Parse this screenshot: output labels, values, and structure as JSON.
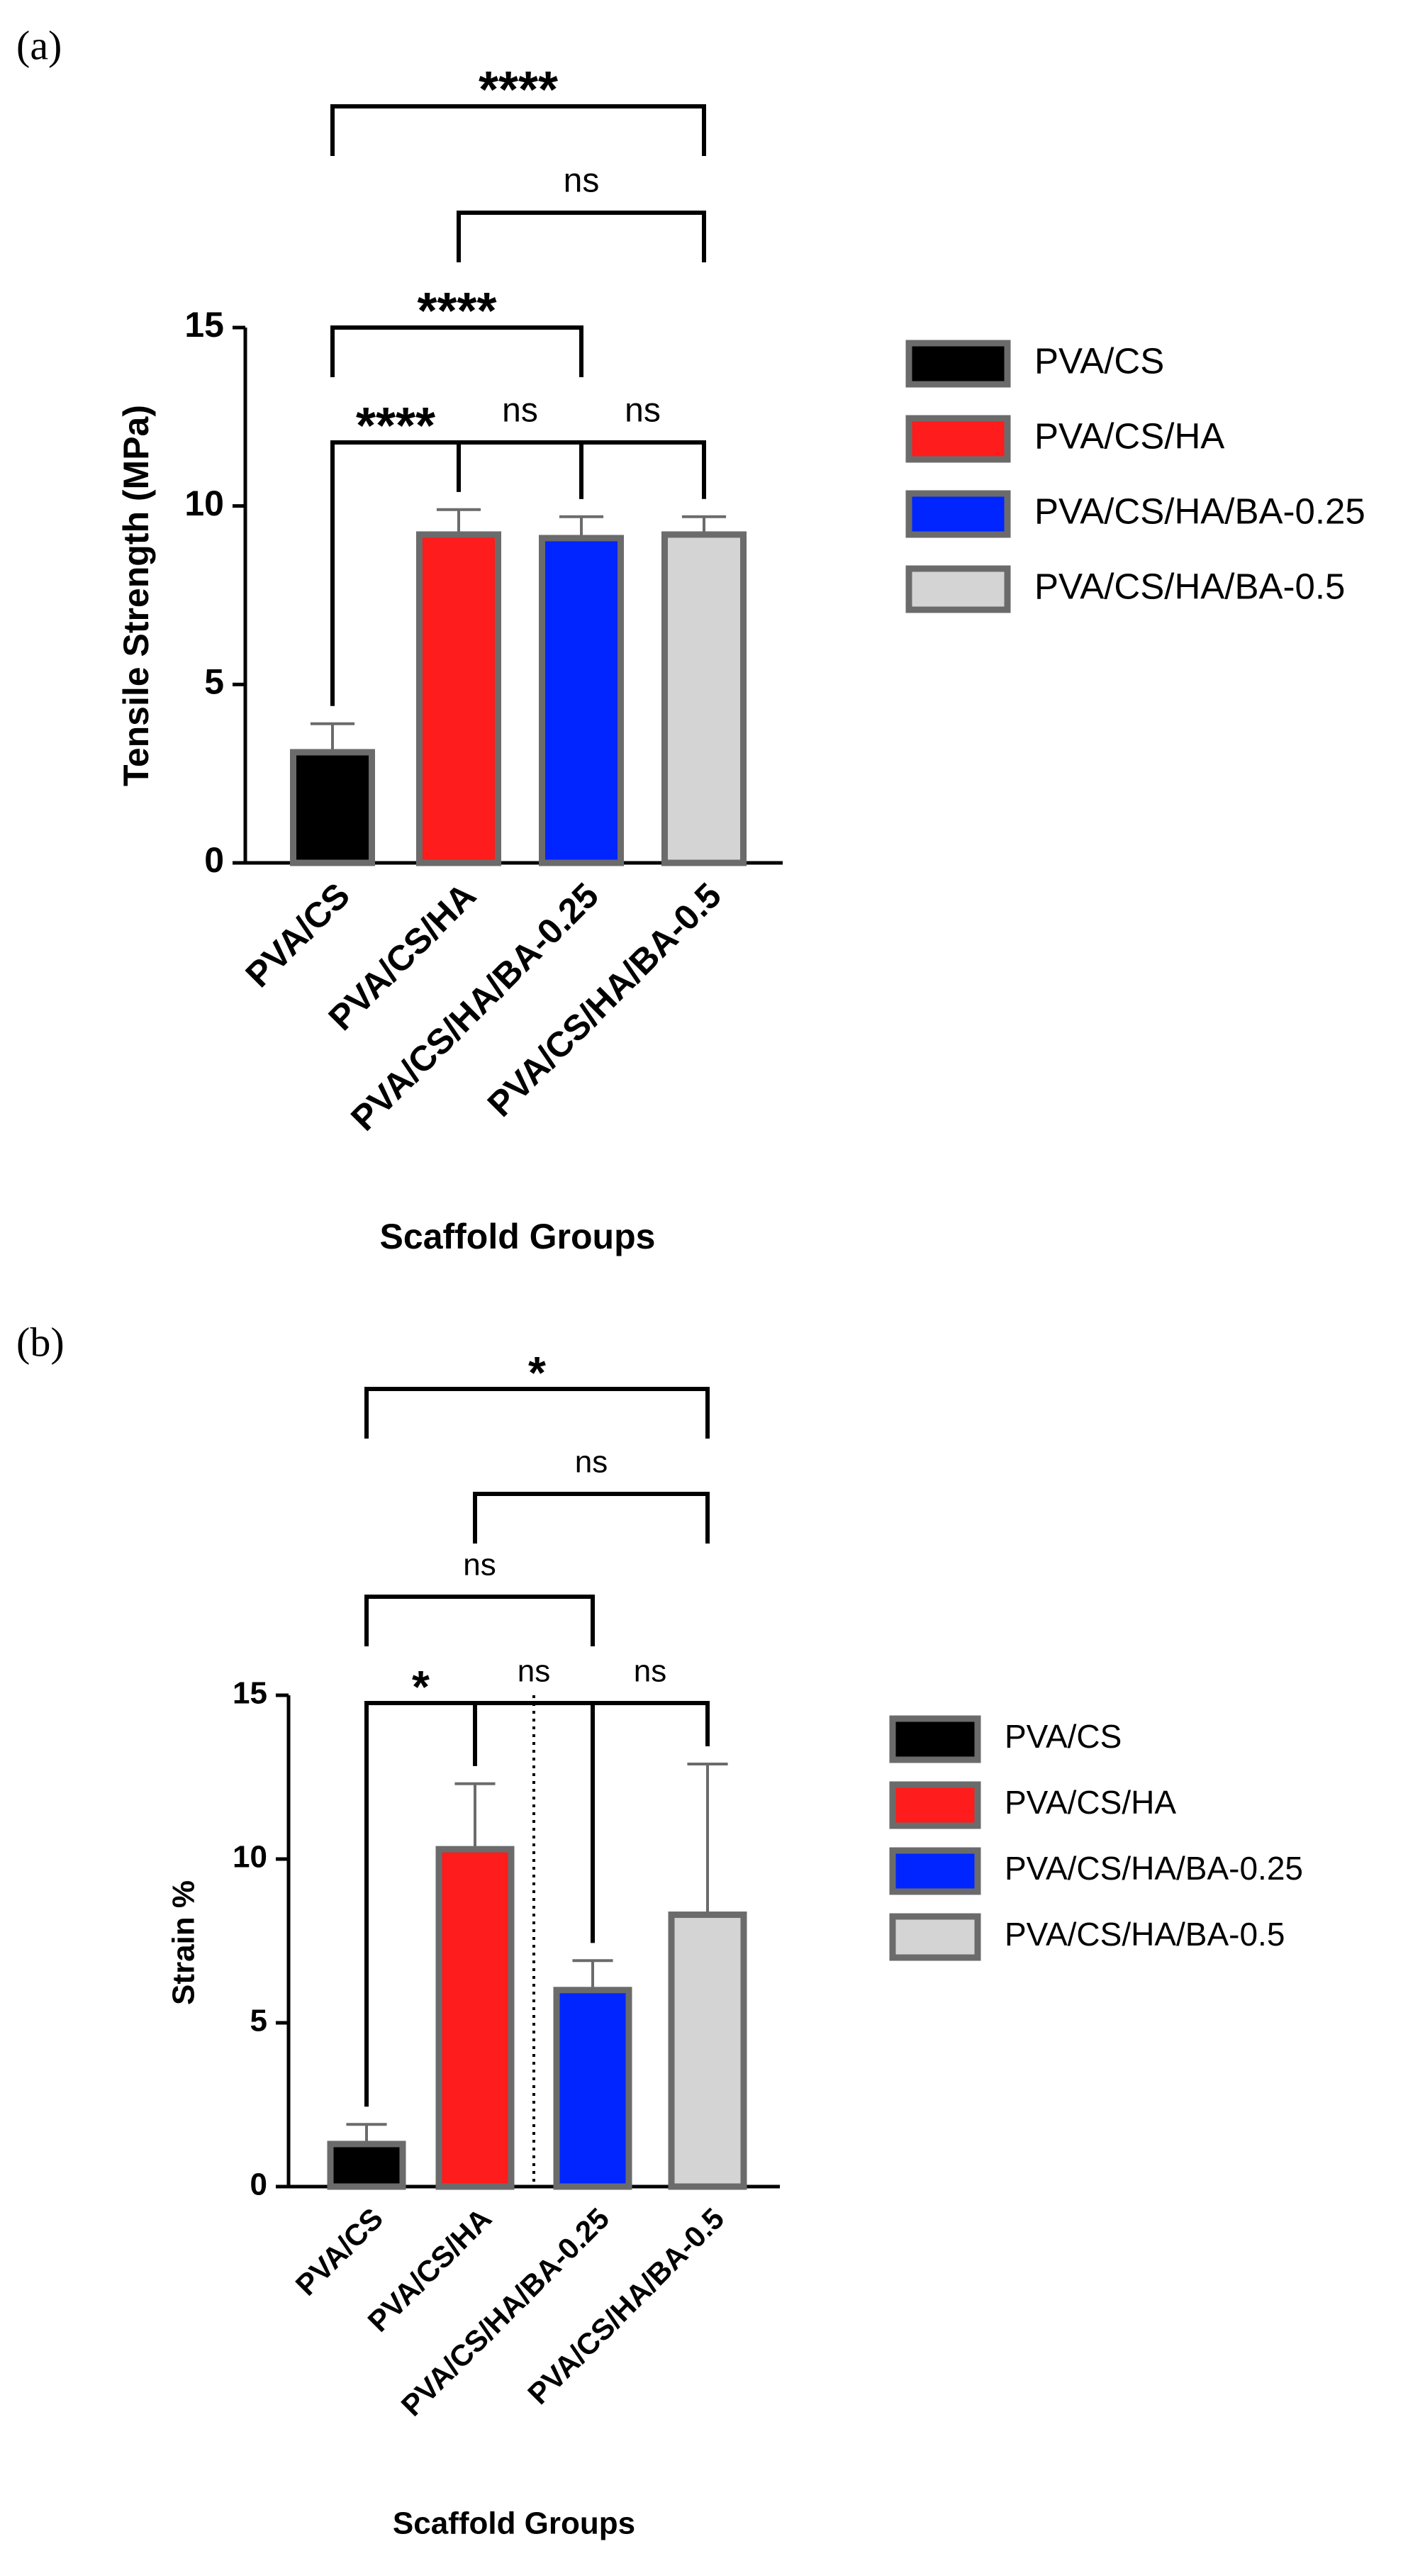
{
  "chart_data": [
    {
      "type": "bar",
      "panel_label": "(a)",
      "y_label": "Tensile Strength (MPa)",
      "x_label": "Scaffold Groups",
      "categories": [
        "PVA/CS",
        "PVA/CS/HA",
        "PVA/CS/HA/BA-0.25",
        "PVA/CS/HA/BA-0.5"
      ],
      "values": [
        3.1,
        9.2,
        9.1,
        9.2
      ],
      "errors": [
        0.8,
        0.7,
        0.6,
        0.5
      ],
      "colors": [
        "#000000",
        "#ff1c1c",
        "#0025ff",
        "#d4d4d4"
      ],
      "edge_color": "#6b6b6b",
      "ylim": [
        0,
        15
      ],
      "yticks": [
        0,
        5,
        10,
        15
      ],
      "legend": "right",
      "comparisons": [
        {
          "pair": [
            0,
            1
          ],
          "label": "****"
        },
        {
          "pair": [
            1,
            2
          ],
          "label": "ns"
        },
        {
          "pair": [
            2,
            3
          ],
          "label": "ns"
        },
        {
          "pair": [
            0,
            2
          ],
          "label": "****"
        },
        {
          "pair": [
            1,
            3
          ],
          "label": "ns"
        },
        {
          "pair": [
            0,
            3
          ],
          "label": "****"
        }
      ]
    },
    {
      "type": "bar",
      "panel_label": "(b)",
      "y_label": "Strain %",
      "x_label": "Scaffold Groups",
      "categories": [
        "PVA/CS",
        "PVA/CS/HA",
        "PVA/CS/HA/BA-0.25",
        "PVA/CS/HA/BA-0.5"
      ],
      "values": [
        1.3,
        10.3,
        6.0,
        8.3
      ],
      "errors": [
        0.6,
        2.0,
        0.9,
        4.6
      ],
      "colors": [
        "#000000",
        "#ff1c1c",
        "#0025ff",
        "#d4d4d4"
      ],
      "edge_color": "#6b6b6b",
      "ylim": [
        0,
        15
      ],
      "yticks": [
        0,
        5,
        10,
        15
      ],
      "legend": "right",
      "comparisons": [
        {
          "pair": [
            0,
            1
          ],
          "label": "*"
        },
        {
          "pair": [
            1,
            2
          ],
          "label": "ns"
        },
        {
          "pair": [
            2,
            3
          ],
          "label": "ns"
        },
        {
          "pair": [
            0,
            2
          ],
          "label": "ns"
        },
        {
          "pair": [
            1,
            3
          ],
          "label": "ns"
        },
        {
          "pair": [
            0,
            3
          ],
          "label": "*"
        }
      ]
    }
  ]
}
